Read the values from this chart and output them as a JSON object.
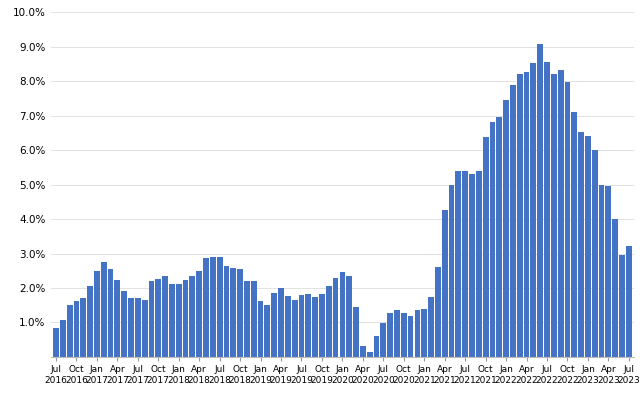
{
  "bar_color": "#4472C4",
  "background_color": "#ffffff",
  "ylim": [
    0,
    0.1
  ],
  "yticks": [
    0.01,
    0.02,
    0.03,
    0.04,
    0.05,
    0.06,
    0.07,
    0.08,
    0.09,
    0.1
  ],
  "labels": [
    "Jul\n2016",
    "Oct\n2016",
    "Jan\n2017",
    "Apr\n2017",
    "Jul\n2017",
    "Oct\n2017",
    "Jan\n2018",
    "Apr\n2018",
    "Jul\n2018",
    "Oct\n2018",
    "Jan\n2019",
    "Apr\n2019",
    "Jul\n2019",
    "Oct\n2019",
    "Jan\n2020",
    "Apr\n2020",
    "Jul\n2020",
    "Oct\n2020",
    "Jan\n2021",
    "Apr\n2021",
    "Jul\n2021",
    "Oct\n2021",
    "Jan\n2022",
    "Apr\n2022",
    "Jul\n2022",
    "Oct\n2022",
    "Jan\n2023",
    "Apr\n2023",
    "Jul\n2023"
  ],
  "all_values": [
    0.0083,
    0.0108,
    0.0151,
    0.0163,
    0.0171,
    0.0207,
    0.0248,
    0.0275,
    0.0254,
    0.0223,
    0.0191,
    0.0172,
    0.0171,
    0.0165,
    0.0221,
    0.0226,
    0.0235,
    0.0213,
    0.0212,
    0.0222,
    0.0236,
    0.0249,
    0.0287,
    0.0289,
    0.0291,
    0.0265,
    0.0258,
    0.0255,
    0.0221,
    0.0219,
    0.0162,
    0.0152,
    0.0186,
    0.0199,
    0.0178,
    0.0165,
    0.0181,
    0.0182,
    0.0174,
    0.0182,
    0.0205,
    0.0229,
    0.0247,
    0.0234,
    0.0146,
    0.0033,
    0.0013,
    0.0062,
    0.0099,
    0.0126,
    0.0135,
    0.0126,
    0.012,
    0.0136,
    0.014,
    0.0174,
    0.0262,
    0.0426,
    0.0499,
    0.0539,
    0.054,
    0.0531,
    0.0539,
    0.0637,
    0.0682,
    0.0696,
    0.0745,
    0.0789,
    0.082,
    0.0826,
    0.0853,
    0.0909,
    0.0855,
    0.0822,
    0.0832,
    0.0798,
    0.0712,
    0.0654,
    0.064,
    0.06,
    0.0498,
    0.0497,
    0.04,
    0.0297,
    0.0323
  ],
  "tick_indices": [
    0,
    3,
    6,
    9,
    12,
    15,
    18,
    21,
    24,
    27,
    30,
    33,
    36,
    39,
    42,
    45,
    48,
    51,
    54,
    57,
    60,
    63,
    66,
    69,
    72,
    75,
    78,
    81,
    84
  ]
}
